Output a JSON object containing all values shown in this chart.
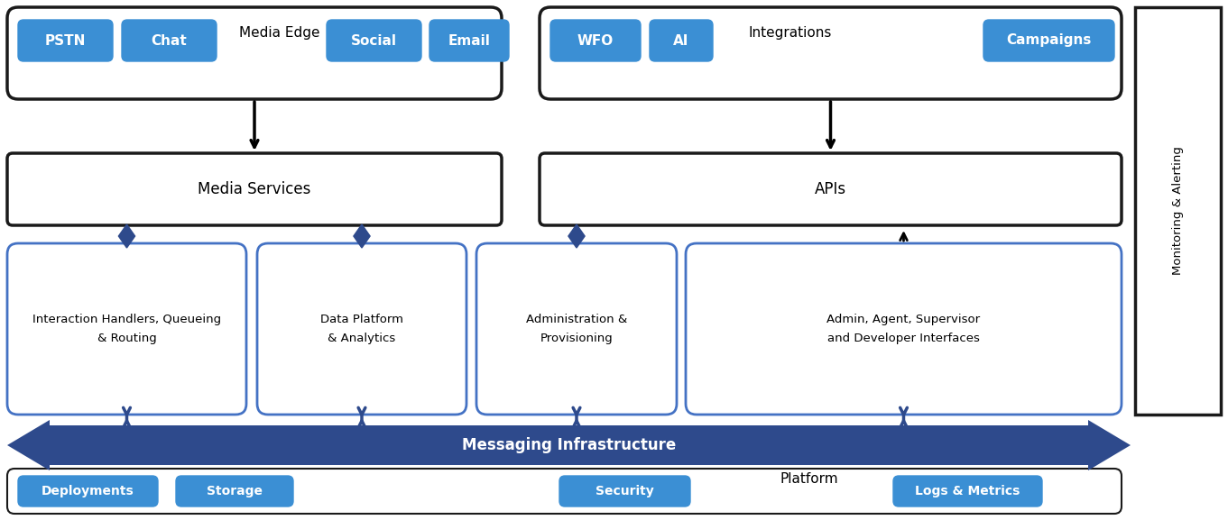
{
  "bg_color": "#ffffff",
  "blue_btn_color": "#3B8FD4",
  "blue_btn_text": "#ffffff",
  "dark_border": "#1a1a1a",
  "blue_border": "#4472C4",
  "arrow_blue": "#2E4A8C",
  "text_color": "#000000",
  "media_edge_label": "Media Edge",
  "integrations_label": "Integrations",
  "media_services_label": "Media Services",
  "apis_label": "APIs",
  "messaging_label": "Messaging Infrastructure",
  "platform_label": "Platform",
  "monitoring_label": "Monitoring & Alerting",
  "middle_boxes": [
    "Interaction Handlers, Queueing\n& Routing",
    "Data Platform\n& Analytics",
    "Administration &\nProvisioning",
    "Admin, Agent, Supervisor\nand Developer Interfaces"
  ],
  "platform_buttons": [
    "Deployments",
    "Storage",
    "Security",
    "Logs & Metrics"
  ]
}
